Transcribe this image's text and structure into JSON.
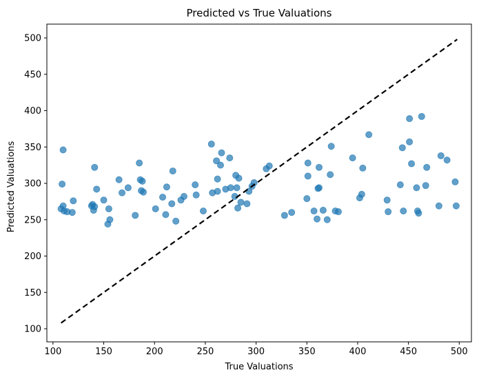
{
  "chart_data": {
    "type": "scatter",
    "title": "Predicted vs True Valuations",
    "xlabel": "True Valuations",
    "ylabel": "Predicted Valuations",
    "xlim": [
      94,
      512
    ],
    "ylim": [
      82,
      519
    ],
    "xticks": [
      100,
      150,
      200,
      250,
      300,
      350,
      400,
      450,
      500
    ],
    "yticks": [
      100,
      150,
      200,
      250,
      300,
      350,
      400,
      450,
      500
    ],
    "grid": false,
    "marker_color": "#1f77b4",
    "marker_alpha": 0.7,
    "reference_line": {
      "x": [
        108,
        498
      ],
      "y": [
        108,
        498
      ],
      "style": "dashed",
      "color": "#000000"
    },
    "points": [
      [
        108,
        265
      ],
      [
        109,
        299
      ],
      [
        110,
        269
      ],
      [
        110,
        346
      ],
      [
        111,
        262
      ],
      [
        114,
        261
      ],
      [
        119,
        260
      ],
      [
        120,
        276
      ],
      [
        138,
        269
      ],
      [
        139,
        271
      ],
      [
        140,
        263
      ],
      [
        141,
        268
      ],
      [
        141,
        322
      ],
      [
        143,
        292
      ],
      [
        150,
        277
      ],
      [
        154,
        244
      ],
      [
        155,
        265
      ],
      [
        156,
        250
      ],
      [
        165,
        305
      ],
      [
        168,
        287
      ],
      [
        174,
        294
      ],
      [
        181,
        256
      ],
      [
        185,
        328
      ],
      [
        186,
        305
      ],
      [
        187,
        290
      ],
      [
        188,
        303
      ],
      [
        189,
        288
      ],
      [
        201,
        265
      ],
      [
        208,
        281
      ],
      [
        211,
        257
      ],
      [
        212,
        295
      ],
      [
        217,
        272
      ],
      [
        218,
        317
      ],
      [
        221,
        248
      ],
      [
        226,
        277
      ],
      [
        229,
        282
      ],
      [
        240,
        298
      ],
      [
        241,
        284
      ],
      [
        248,
        262
      ],
      [
        256,
        354
      ],
      [
        257,
        287
      ],
      [
        261,
        331
      ],
      [
        262,
        306
      ],
      [
        262,
        289
      ],
      [
        265,
        325
      ],
      [
        266,
        342
      ],
      [
        270,
        292
      ],
      [
        274,
        335
      ],
      [
        275,
        294
      ],
      [
        279,
        282
      ],
      [
        280,
        311
      ],
      [
        281,
        294
      ],
      [
        282,
        266
      ],
      [
        283,
        307
      ],
      [
        285,
        274
      ],
      [
        291,
        272
      ],
      [
        293,
        289
      ],
      [
        296,
        296
      ],
      [
        298,
        301
      ],
      [
        310,
        320
      ],
      [
        313,
        324
      ],
      [
        328,
        256
      ],
      [
        335,
        260
      ],
      [
        350,
        279
      ],
      [
        351,
        310
      ],
      [
        351,
        328
      ],
      [
        357,
        262
      ],
      [
        360,
        251
      ],
      [
        361,
        293
      ],
      [
        362,
        294
      ],
      [
        362,
        322
      ],
      [
        366,
        263
      ],
      [
        370,
        250
      ],
      [
        373,
        312
      ],
      [
        374,
        351
      ],
      [
        378,
        262
      ],
      [
        381,
        261
      ],
      [
        395,
        335
      ],
      [
        402,
        280
      ],
      [
        404,
        285
      ],
      [
        405,
        321
      ],
      [
        411,
        367
      ],
      [
        429,
        277
      ],
      [
        430,
        261
      ],
      [
        442,
        298
      ],
      [
        444,
        349
      ],
      [
        445,
        262
      ],
      [
        451,
        357
      ],
      [
        451,
        389
      ],
      [
        453,
        327
      ],
      [
        458,
        294
      ],
      [
        459,
        262
      ],
      [
        460,
        259
      ],
      [
        463,
        392
      ],
      [
        467,
        297
      ],
      [
        468,
        322
      ],
      [
        480,
        269
      ],
      [
        482,
        338
      ],
      [
        488,
        332
      ],
      [
        496,
        302
      ],
      [
        497,
        269
      ]
    ]
  }
}
